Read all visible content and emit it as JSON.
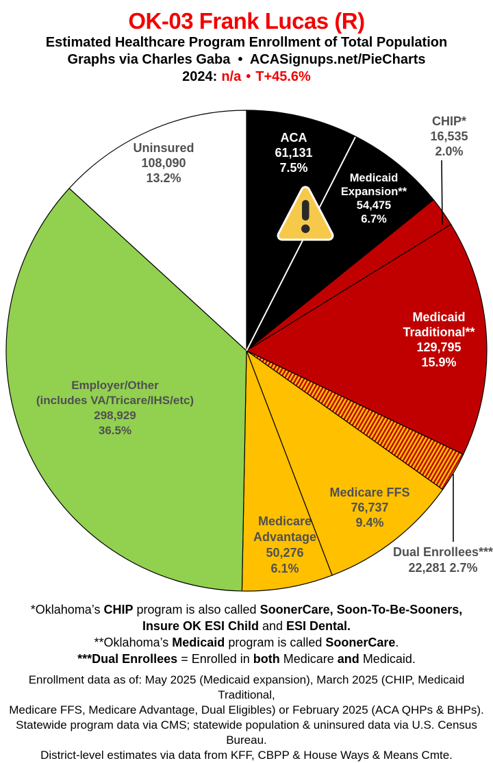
{
  "header": {
    "title": "OK-03 Frank Lucas (R)",
    "subtitle1": "Estimated Healthcare Program Enrollment of Total Population",
    "subtitle2": "Graphs via Charles Gaba  •  ACASignups.net/PieCharts",
    "year_line": {
      "prefix": "2024:",
      "value": "n/a",
      "separator": "•",
      "swing": "T+45.6%"
    }
  },
  "accent_colors": {
    "title_red": "#f20000",
    "dark_red_slice": "#C00000",
    "gold_slice": "#FFC000",
    "green_slice": "#92D050",
    "black_slice": "#000000",
    "label_gray": "#4f5052"
  },
  "chart_data": {
    "type": "pie",
    "title": "Estimated Healthcare Program Enrollment of Total Population",
    "legend_position": "labels-on-slices",
    "start_angle_deg": 0,
    "direction": "clockwise",
    "slices": [
      {
        "label": "ACA",
        "value": 61131,
        "pct": 7.5,
        "color": "#000000",
        "display_lines": [
          "ACA",
          "61,131",
          "7.5%"
        ]
      },
      {
        "label": "Medicaid Expansion**",
        "value": 54475,
        "pct": 6.7,
        "color": "#000000",
        "display_lines": [
          "Medicaid",
          "Expansion**",
          "54,475",
          "6.7%"
        ]
      },
      {
        "label": "CHIP*",
        "value": 16535,
        "pct": 2.0,
        "color": "#C00000",
        "display_lines": [
          "CHIP*",
          "16,535",
          "2.0%"
        ]
      },
      {
        "label": "Medicaid Traditional**",
        "value": 129795,
        "pct": 15.9,
        "color": "#C00000",
        "display_lines": [
          "Medicaid",
          "Traditional**",
          "129,795",
          "15.9%"
        ]
      },
      {
        "label": "Dual Enrollees***",
        "value": 22281,
        "pct": 2.7,
        "color": "hatch-red-gold",
        "display_lines": [
          "Dual Enrollees***",
          "22,281 2.7%"
        ]
      },
      {
        "label": "Medicare FFS",
        "value": 76737,
        "pct": 9.4,
        "color": "#FFC000",
        "display_lines": [
          "Medicare FFS",
          "76,737",
          "9.4%"
        ]
      },
      {
        "label": "Medicare Advantage",
        "value": 50276,
        "pct": 6.1,
        "color": "#FFC000",
        "display_lines": [
          "Medicare",
          "Advantage",
          "50,276",
          "6.1%"
        ]
      },
      {
        "label": "Employer/Other (includes VA/Tricare/IHS/etc)",
        "value": 298929,
        "pct": 36.5,
        "color": "#92D050",
        "display_lines": [
          "Employer/Other",
          "(includes VA/Tricare/IHS/etc)",
          "298,929",
          "36.5%"
        ]
      },
      {
        "label": "Uninsured",
        "value": 108090,
        "pct": 13.2,
        "color": "#FFFFFF",
        "display_lines": [
          "Uninsured",
          "108,090",
          "13.2%"
        ]
      }
    ]
  },
  "footnotes": {
    "lines": [
      [
        {
          "t": "*Oklahoma’s "
        },
        {
          "t": "CHIP",
          "b": 1
        },
        {
          "t": " program is also called "
        },
        {
          "t": "SoonerCare, Soon-To-Be-Sooners,",
          "b": 1
        }
      ],
      [
        {
          "t": "Insure OK ESI Child",
          "b": 1
        },
        {
          "t": " and "
        },
        {
          "t": "ESI Dental.",
          "b": 1
        }
      ],
      [
        {
          "t": "**Oklahoma’s "
        },
        {
          "t": "Medicaid",
          "b": 1
        },
        {
          "t": " program is called "
        },
        {
          "t": "SoonerCare",
          "b": 1
        },
        {
          "t": "."
        }
      ],
      [
        {
          "t": "***Dual Enrollees",
          "b": 1
        },
        {
          "t": " = Enrolled in "
        },
        {
          "t": "both",
          "b": 1
        },
        {
          "t": " Medicare "
        },
        {
          "t": "and",
          "b": 1
        },
        {
          "t": " Medicaid."
        }
      ]
    ]
  },
  "sources": {
    "lines": [
      "Enrollment data as of: May 2025 (Medicaid expansion), March 2025 (CHIP, Medicaid Traditional,",
      "Medicare FFS, Medicare Advantage, Dual Eligibles) or February 2025 (ACA QHPs & BHPs).",
      "Statewide program data via CMS; statewide population & uninsured data via U.S. Census Bureau.",
      "District-level estimates via data from KFF, CBPP & House Ways & Means Cmte."
    ]
  }
}
